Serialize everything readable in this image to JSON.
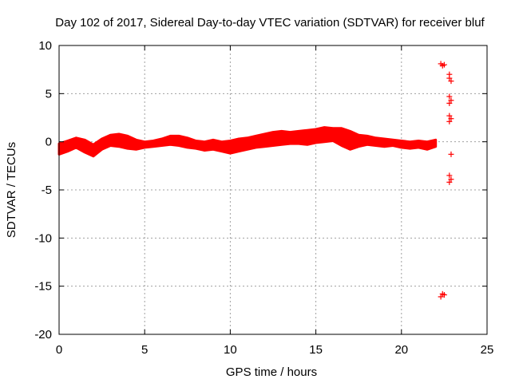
{
  "chart_data": {
    "type": "scatter",
    "title": "Day 102 of 2017, Sidereal Day-to-day VTEC variation (SDTVAR) for receiver bluf",
    "xlabel": "GPS time / hours",
    "ylabel": "SDTVAR / TECUs",
    "xlim": [
      0,
      25
    ],
    "ylim": [
      -20,
      10
    ],
    "x_ticks": [
      0,
      5,
      10,
      15,
      20,
      25
    ],
    "y_ticks": [
      -20,
      -15,
      -10,
      -5,
      0,
      5,
      10
    ],
    "grid": true,
    "marker": "plus",
    "series_color": "#ff0000",
    "series": [
      {
        "name": "SDTVAR",
        "band": {
          "x": [
            0.0,
            0.5,
            1.0,
            1.5,
            2.0,
            2.5,
            3.0,
            3.5,
            4.0,
            4.5,
            5.0,
            5.5,
            6.0,
            6.5,
            7.0,
            7.5,
            8.0,
            8.5,
            9.0,
            9.5,
            10.0,
            10.5,
            11.0,
            11.5,
            12.0,
            12.5,
            13.0,
            13.5,
            14.0,
            14.5,
            15.0,
            15.5,
            16.0,
            16.5,
            17.0,
            17.5,
            18.0,
            18.5,
            19.0,
            19.5,
            20.0,
            20.5,
            21.0,
            21.5,
            22.0
          ],
          "upper": [
            -0.2,
            0.1,
            0.4,
            0.2,
            -0.3,
            0.3,
            0.7,
            0.8,
            0.6,
            0.2,
            0.0,
            0.1,
            0.3,
            0.6,
            0.6,
            0.4,
            0.1,
            0.0,
            0.2,
            0.0,
            0.1,
            0.3,
            0.4,
            0.6,
            0.8,
            1.0,
            1.1,
            1.0,
            1.1,
            1.2,
            1.3,
            1.5,
            1.4,
            1.4,
            1.1,
            0.7,
            0.6,
            0.4,
            0.3,
            0.2,
            0.1,
            0.0,
            0.1,
            0.0,
            0.2
          ],
          "lower": [
            -1.3,
            -1.0,
            -0.6,
            -1.1,
            -1.5,
            -0.8,
            -0.4,
            -0.5,
            -0.7,
            -0.8,
            -0.6,
            -0.5,
            -0.4,
            -0.3,
            -0.4,
            -0.6,
            -0.7,
            -0.9,
            -0.8,
            -1.0,
            -1.2,
            -1.0,
            -0.8,
            -0.6,
            -0.5,
            -0.4,
            -0.3,
            -0.2,
            -0.2,
            -0.3,
            -0.1,
            0.0,
            0.1,
            -0.4,
            -0.8,
            -0.5,
            -0.3,
            -0.4,
            -0.5,
            -0.4,
            -0.6,
            -0.7,
            -0.6,
            -0.8,
            -0.5
          ]
        },
        "points": [
          {
            "x": 22.3,
            "y": 8.1
          },
          {
            "x": 22.4,
            "y": 7.9
          },
          {
            "x": 22.5,
            "y": 8.0
          },
          {
            "x": 22.4,
            "y": -15.8
          },
          {
            "x": 22.3,
            "y": -16.1
          },
          {
            "x": 22.5,
            "y": -15.9
          },
          {
            "x": 22.8,
            "y": 7.0
          },
          {
            "x": 22.8,
            "y": 6.6
          },
          {
            "x": 22.9,
            "y": 6.3
          },
          {
            "x": 22.8,
            "y": 4.7
          },
          {
            "x": 22.9,
            "y": 4.3
          },
          {
            "x": 22.8,
            "y": 4.0
          },
          {
            "x": 22.8,
            "y": 2.7
          },
          {
            "x": 22.9,
            "y": 2.4
          },
          {
            "x": 22.8,
            "y": 2.1
          },
          {
            "x": 22.9,
            "y": -1.3
          },
          {
            "x": 22.8,
            "y": -3.5
          },
          {
            "x": 22.9,
            "y": -3.9
          },
          {
            "x": 22.8,
            "y": -4.2
          }
        ]
      }
    ]
  }
}
